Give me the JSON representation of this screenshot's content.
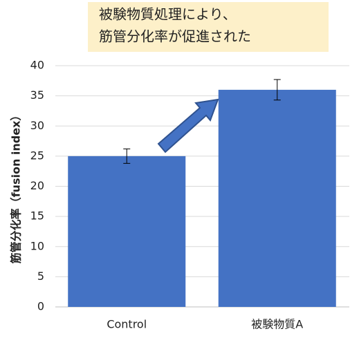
{
  "chart_data": {
    "type": "bar",
    "annotation_lines": [
      "被験物質処理により、",
      "筋管分化率が促進された"
    ],
    "y_label": "筋管分化率（fusion index）",
    "categories": [
      "Control",
      "被験物質A"
    ],
    "values": [
      25,
      36
    ],
    "errors": [
      1.2,
      1.7
    ],
    "color": "#4472c4",
    "ylim": [
      0,
      40
    ],
    "yticks": [
      0,
      5,
      10,
      15,
      20,
      25,
      30,
      35,
      40
    ],
    "grid": true
  }
}
